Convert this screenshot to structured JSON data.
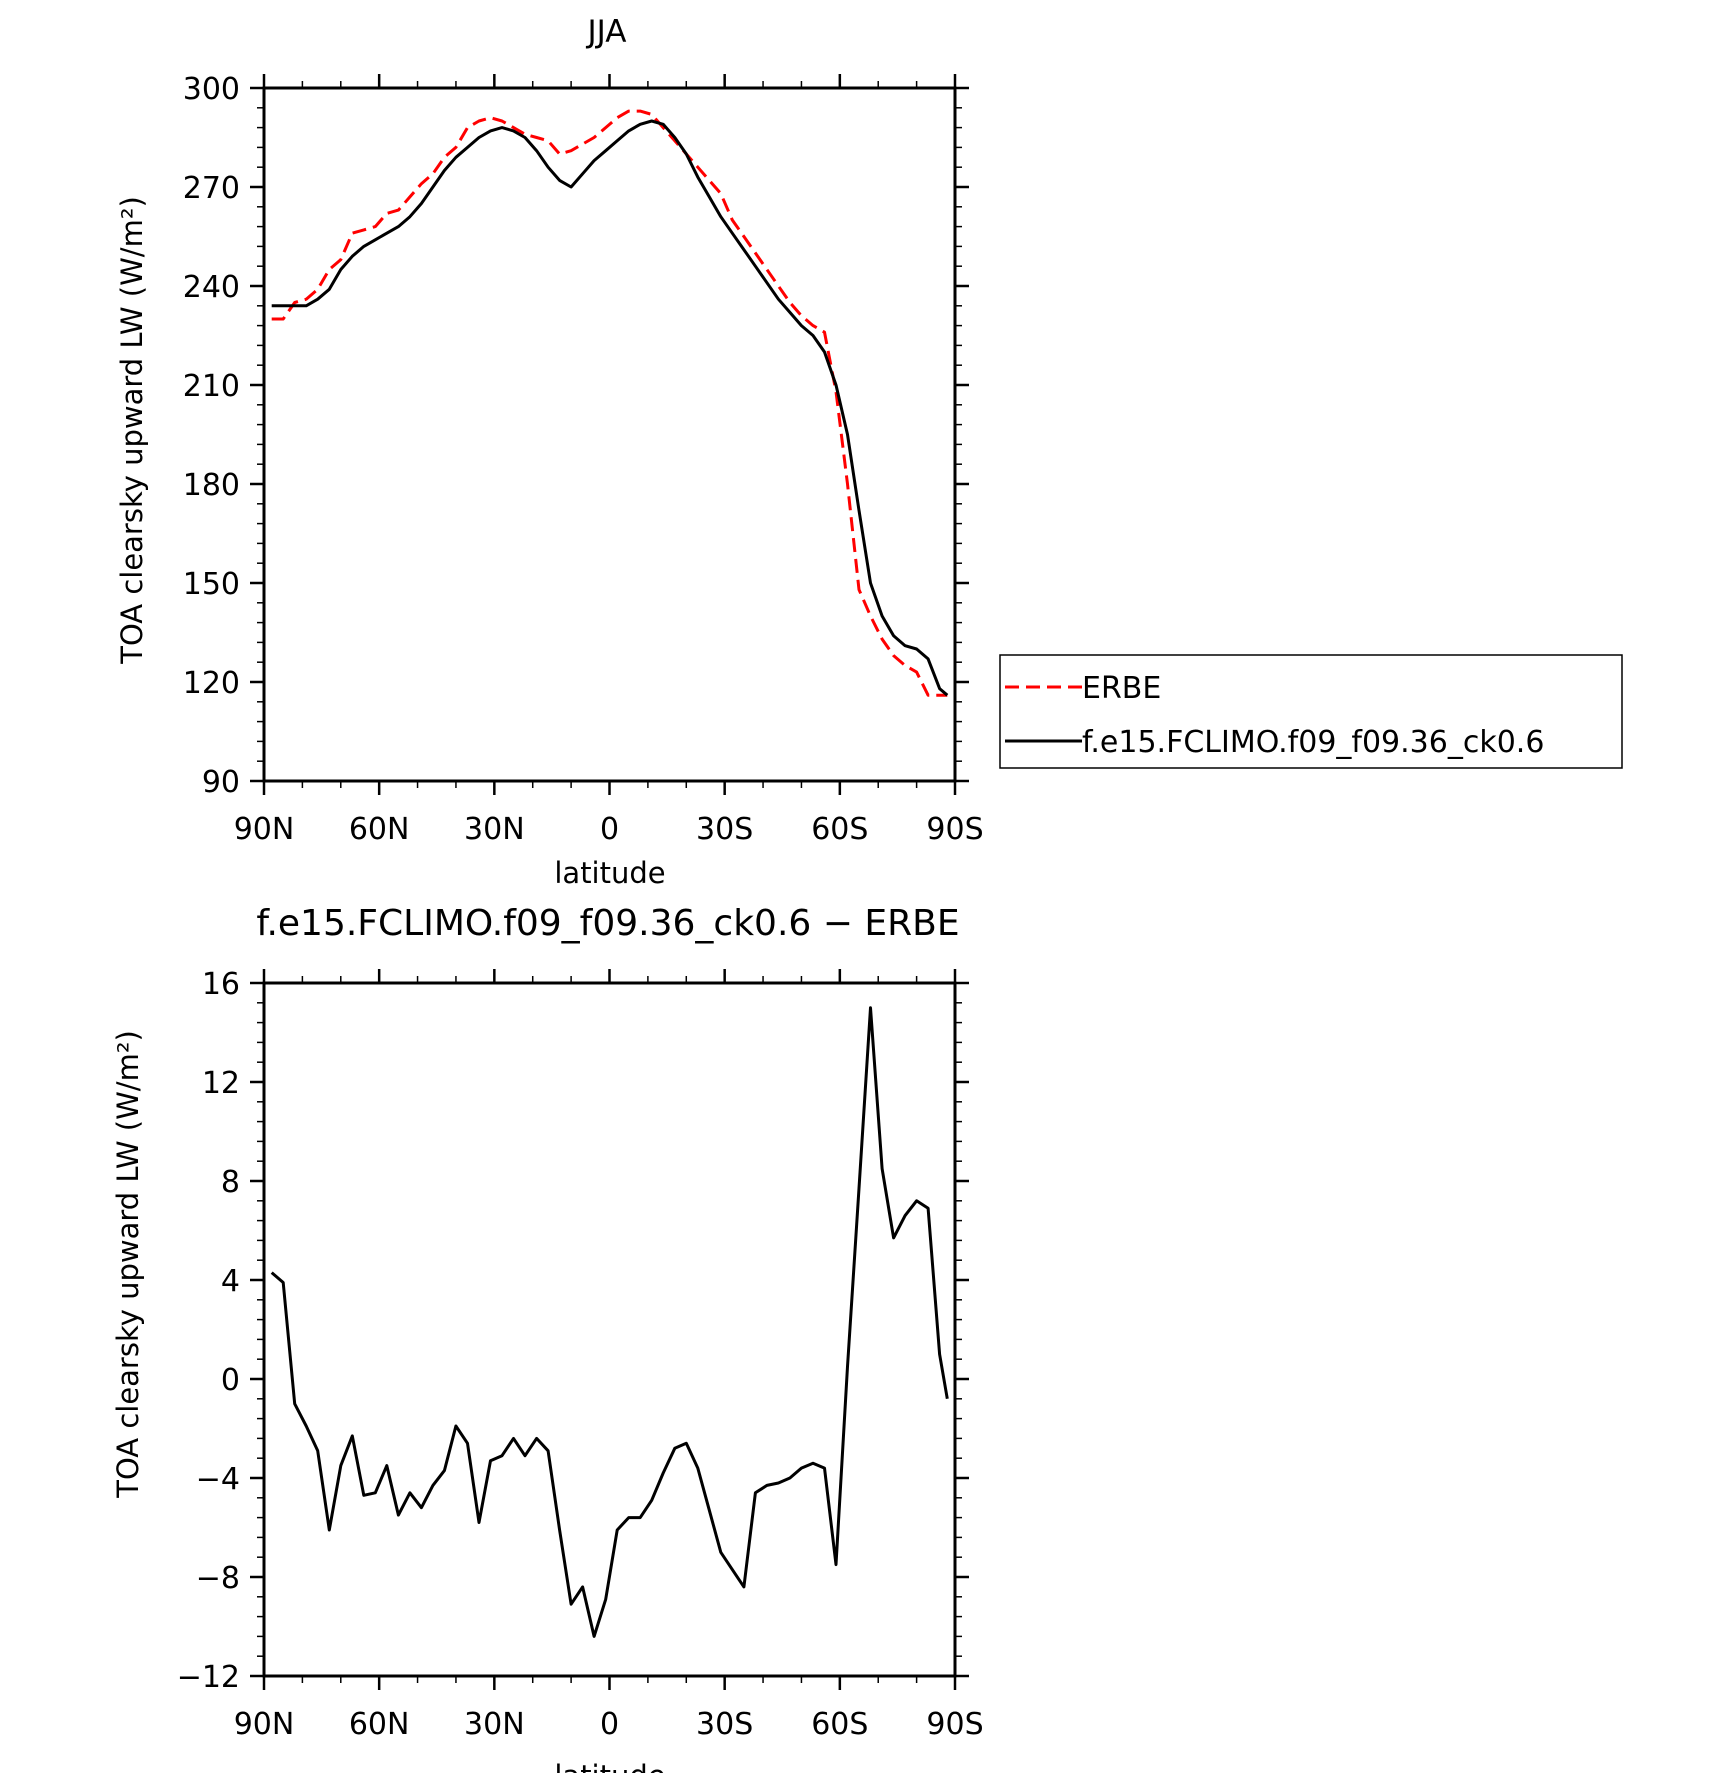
{
  "chart_data": [
    {
      "type": "line",
      "title": "JJA",
      "xlabel": "latitude",
      "ylabel": "TOA clearsky upward LW (W/m²)",
      "ylim": [
        90,
        300
      ],
      "yticks": [
        90,
        120,
        150,
        180,
        210,
        240,
        270,
        300
      ],
      "ytick_labels": [
        "90",
        "120",
        "150",
        "180",
        "210",
        "240",
        "270",
        "300"
      ],
      "xlim": [
        90,
        -90
      ],
      "xticks": [
        90,
        60,
        30,
        0,
        -30,
        -60,
        -90
      ],
      "xtick_labels": [
        "90N",
        "60N",
        "30N",
        "0",
        "30S",
        "60S",
        "90S"
      ],
      "grid": false,
      "legend": "right",
      "series": [
        {
          "name": "ERBE",
          "color": "#ff0000",
          "style": "dashed",
          "x": [
            88,
            85,
            82,
            79,
            76,
            73,
            70,
            67,
            64,
            61,
            58,
            55,
            52,
            49,
            46,
            43,
            40,
            37,
            34,
            31,
            28,
            25,
            22,
            19,
            16,
            13,
            10,
            7,
            4,
            1,
            -2,
            -5,
            -8,
            -11,
            -14,
            -17,
            -20,
            -23,
            -26,
            -29,
            -32,
            -35,
            -38,
            -41,
            -44,
            -47,
            -50,
            -53,
            -56,
            -59,
            -62,
            -65,
            -68,
            -71,
            -74,
            -77,
            -80,
            -83,
            -86,
            -88
          ],
          "y": [
            230,
            230,
            235,
            236,
            239,
            245,
            248,
            256,
            257,
            258,
            262,
            263,
            267,
            271,
            274,
            279,
            282,
            288,
            290,
            291,
            290,
            288,
            286,
            285,
            284,
            280,
            281,
            283,
            285,
            288,
            291,
            293,
            293,
            292,
            288,
            284,
            280,
            276,
            272,
            268,
            260,
            255,
            250,
            245,
            240,
            235,
            231,
            228,
            226,
            208,
            180,
            148,
            140,
            133,
            128,
            125,
            123,
            116,
            116,
            116
          ]
        },
        {
          "name": "f.e15.FCLIMO.f09_f09.36_ck0.6",
          "color": "#000000",
          "style": "solid",
          "x": [
            88,
            85,
            82,
            79,
            76,
            73,
            70,
            67,
            64,
            61,
            58,
            55,
            52,
            49,
            46,
            43,
            40,
            37,
            34,
            31,
            28,
            25,
            22,
            19,
            16,
            13,
            10,
            7,
            4,
            1,
            -2,
            -5,
            -8,
            -11,
            -14,
            -17,
            -20,
            -23,
            -26,
            -29,
            -32,
            -35,
            -38,
            -41,
            -44,
            -47,
            -50,
            -53,
            -56,
            -59,
            -62,
            -65,
            -68,
            -71,
            -74,
            -77,
            -80,
            -83,
            -86,
            -88
          ],
          "y": [
            234,
            234,
            234,
            234,
            236,
            239,
            245,
            249,
            252,
            254,
            256,
            258,
            261,
            265,
            270,
            275,
            279,
            282,
            285,
            287,
            288,
            287,
            285,
            281,
            276,
            272,
            270,
            274,
            278,
            281,
            284,
            287,
            289,
            290,
            289,
            285,
            280,
            273,
            267,
            261,
            256,
            251,
            246,
            241,
            236,
            232,
            228,
            225,
            220,
            210,
            195,
            172,
            150,
            140,
            134,
            131,
            130,
            127,
            118,
            116
          ]
        }
      ]
    },
    {
      "type": "line",
      "title": "f.e15.FCLIMO.f09_f09.36_ck0.6 − ERBE",
      "xlabel": "latitude",
      "ylabel": "TOA clearsky upward LW (W/m²)",
      "ylim": [
        -12,
        16
      ],
      "yticks": [
        -12,
        -8,
        -4,
        0,
        4,
        8,
        12,
        16
      ],
      "ytick_labels": [
        "−12",
        "−8",
        "−4",
        "0",
        "4",
        "8",
        "12",
        "16"
      ],
      "xlim": [
        90,
        -90
      ],
      "xticks": [
        90,
        60,
        30,
        0,
        -30,
        -60,
        -90
      ],
      "xtick_labels": [
        "90N",
        "60N",
        "30N",
        "0",
        "30S",
        "60S",
        "90S"
      ],
      "grid": false,
      "series": [
        {
          "color": "#000000",
          "style": "solid",
          "x": [
            88,
            85,
            82,
            79,
            76,
            73,
            70,
            67,
            64,
            61,
            58,
            55,
            52,
            49,
            46,
            43,
            40,
            37,
            34,
            31,
            28,
            25,
            22,
            19,
            16,
            13,
            10,
            7,
            4,
            1,
            -2,
            -5,
            -8,
            -11,
            -14,
            -17,
            -20,
            -23,
            -26,
            -29,
            -32,
            -35,
            -38,
            -41,
            -44,
            -47,
            -50,
            -53,
            -56,
            -59,
            -62,
            -65,
            -68,
            -71,
            -74,
            -77,
            -80,
            -83,
            -86,
            -88
          ],
          "y": [
            4.3,
            3.9,
            -1.0,
            -1.9,
            -2.9,
            -6.1,
            -3.5,
            -2.3,
            -4.7,
            -4.6,
            -3.5,
            -5.5,
            -4.6,
            -5.2,
            -4.3,
            -3.7,
            -1.9,
            -2.6,
            -5.8,
            -3.3,
            -3.1,
            -2.4,
            -3.1,
            -2.4,
            -2.9,
            -6.1,
            -9.1,
            -8.4,
            -10.4,
            -8.9,
            -6.1,
            -5.6,
            -5.6,
            -4.9,
            -3.8,
            -2.8,
            -2.6,
            -3.6,
            -5.3,
            -7.0,
            -7.7,
            -8.4,
            -4.6,
            -4.3,
            -4.2,
            -4.0,
            -3.6,
            -3.4,
            -3.6,
            -7.5,
            0.5,
            7.7,
            15.0,
            8.5,
            5.7,
            6.6,
            7.2,
            6.9,
            1.0,
            -0.8
          ]
        }
      ]
    }
  ]
}
